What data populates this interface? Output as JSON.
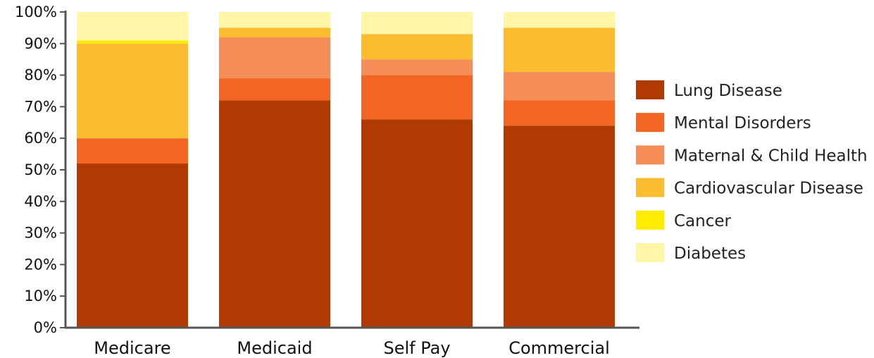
{
  "chart_data": {
    "type": "bar",
    "stacked": true,
    "categories": [
      "Medicare",
      "Medicaid",
      "Self Pay",
      "Commercial"
    ],
    "series": [
      {
        "name": "Lung Disease",
        "color": "#B03A02",
        "values": [
          52,
          72,
          66,
          64
        ]
      },
      {
        "name": "Mental Disorders",
        "color": "#F26522",
        "values": [
          8,
          7,
          14,
          8
        ]
      },
      {
        "name": "Maternal & Child Health",
        "color": "#F58D58",
        "values": [
          0,
          13,
          5,
          9
        ]
      },
      {
        "name": "Cardiovascular Disease",
        "color": "#FBBC30",
        "values": [
          30,
          3,
          8,
          14
        ]
      },
      {
        "name": "Cancer",
        "color": "#FFEC00",
        "values": [
          1,
          0,
          0,
          0
        ]
      },
      {
        "name": "Diabetes",
        "color": "#FFF6A8",
        "values": [
          9,
          5,
          7,
          5
        ]
      }
    ],
    "yticks": [
      "0%",
      "10%",
      "20%",
      "30%",
      "40%",
      "50%",
      "60%",
      "70%",
      "80%",
      "90%",
      "100%"
    ],
    "ylim": [
      0,
      100
    ],
    "title": "",
    "xlabel": "",
    "ylabel": "",
    "grid": false,
    "legend": "right"
  }
}
